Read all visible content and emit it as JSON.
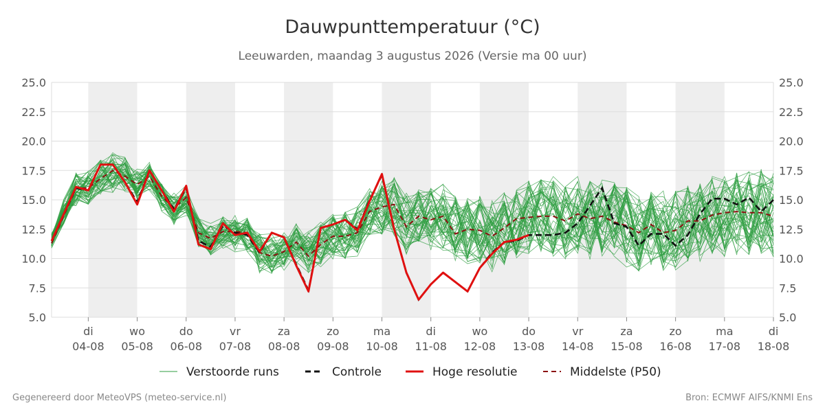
{
  "chart_data": {
    "type": "line",
    "title": "Dauwpunttemperatuur (°C)",
    "subtitle": "Leeuwarden, maandag  3 augustus 2026 (Versie ma 00 uur)",
    "ylim": [
      5.0,
      25.0
    ],
    "yticks": [
      "5.0",
      "7.5",
      "10.0",
      "12.5",
      "15.0",
      "17.5",
      "20.0",
      "22.5",
      "25.0"
    ],
    "xrange_days": [
      3.25,
      18.0
    ],
    "xticks": [
      {
        "day": "di",
        "date": "04-08"
      },
      {
        "day": "wo",
        "date": "05-08"
      },
      {
        "day": "do",
        "date": "06-08"
      },
      {
        "day": "vr",
        "date": "07-08"
      },
      {
        "day": "za",
        "date": "08-08"
      },
      {
        "day": "zo",
        "date": "09-08"
      },
      {
        "day": "ma",
        "date": "10-08"
      },
      {
        "day": "di",
        "date": "11-08"
      },
      {
        "day": "wo",
        "date": "12-08"
      },
      {
        "day": "do",
        "date": "13-08"
      },
      {
        "day": "vr",
        "date": "14-08"
      },
      {
        "day": "za",
        "date": "15-08"
      },
      {
        "day": "zo",
        "date": "16-08"
      },
      {
        "day": "ma",
        "date": "17-08"
      },
      {
        "day": "di",
        "date": "18-08"
      }
    ],
    "grid": true,
    "legend_position": "bottom",
    "colors": {
      "ensemble": "#2e9e40",
      "control": "#111111",
      "hres": "#e01010",
      "median": "#8b1010",
      "weekend_band": "#eeeeee"
    },
    "series": [
      {
        "name": "Controle",
        "style": "dashed",
        "x": [
          3.25,
          3.75,
          4.0,
          4.25,
          4.5,
          4.75,
          5.0,
          5.25,
          5.5,
          5.75,
          6.0,
          6.25,
          6.5,
          6.75,
          7.0,
          7.25,
          7.5,
          7.75,
          8.0,
          8.25,
          8.5,
          8.75,
          9.0,
          9.25,
          9.5,
          9.75,
          10.0,
          10.25,
          10.5,
          10.75,
          11.0,
          11.25,
          11.5,
          11.75,
          12.0,
          12.25,
          12.5,
          12.75,
          13.0,
          13.25,
          13.5,
          13.75,
          14.0,
          14.25,
          14.5,
          14.75,
          15.0,
          15.25,
          15.5,
          15.75,
          16.0,
          16.25,
          16.5,
          16.75,
          17.0,
          17.25,
          17.5,
          17.75,
          18.0
        ],
        "y": [
          11.5,
          16.0,
          15.8,
          18.0,
          18.0,
          16.5,
          14.8,
          17.5,
          15.8,
          14.2,
          16.0,
          11.5,
          11.0,
          12.8,
          12.2,
          12.0,
          10.5,
          12.2,
          11.8,
          9.5,
          7.3,
          12.6,
          12.9,
          13.3,
          12.5,
          15.0,
          17.1,
          12.5,
          8.8,
          6.5,
          7.8,
          8.8,
          8.0,
          7.2,
          9.2,
          10.5,
          11.4,
          11.5,
          12.0,
          12.0,
          12.0,
          12.2,
          13.0,
          14.5,
          16.0,
          13.0,
          12.7,
          11.1,
          12.1,
          12.1,
          11.1,
          12.0,
          13.8,
          15.1,
          15.1,
          14.6,
          15.2,
          14.0,
          15.0
        ]
      },
      {
        "name": "Hoge resolutie",
        "style": "solid",
        "x": [
          3.25,
          3.75,
          4.0,
          4.25,
          4.5,
          4.75,
          5.0,
          5.25,
          5.5,
          5.75,
          6.0,
          6.25,
          6.5,
          6.75,
          7.0,
          7.25,
          7.5,
          7.75,
          8.0,
          8.25,
          8.5,
          8.75,
          9.0,
          9.25,
          9.5,
          9.75,
          10.0,
          10.25,
          10.5,
          10.75,
          11.0,
          11.25,
          11.5,
          11.75,
          12.0,
          12.25,
          12.5,
          12.75,
          13.0
        ],
        "y": [
          11.5,
          16.1,
          15.8,
          18.0,
          18.0,
          16.5,
          14.6,
          17.5,
          15.8,
          14.0,
          16.2,
          11.2,
          10.8,
          13.0,
          12.0,
          12.2,
          10.6,
          12.2,
          11.8,
          9.4,
          7.2,
          12.6,
          12.9,
          13.3,
          12.4,
          14.9,
          17.2,
          12.5,
          8.8,
          6.5,
          7.8,
          8.8,
          8.0,
          7.2,
          9.2,
          10.4,
          11.4,
          11.6,
          12.0
        ]
      },
      {
        "name": "Middelste (P50)",
        "style": "dashed",
        "x": [
          3.25,
          3.75,
          4.0,
          4.25,
          4.5,
          4.75,
          5.0,
          5.25,
          5.5,
          5.75,
          6.0,
          6.25,
          6.5,
          6.75,
          7.0,
          7.25,
          7.5,
          7.75,
          8.0,
          8.25,
          8.5,
          8.75,
          9.0,
          9.25,
          9.5,
          9.75,
          10.0,
          10.25,
          10.5,
          10.75,
          11.0,
          11.25,
          11.5,
          11.75,
          12.0,
          12.25,
          12.5,
          12.75,
          13.0,
          13.25,
          13.5,
          13.75,
          14.0,
          14.25,
          14.5,
          14.75,
          15.0,
          15.25,
          15.5,
          15.75,
          16.0,
          16.25,
          16.5,
          16.75,
          17.0,
          17.25,
          17.5,
          17.75,
          18.0
        ],
        "y": [
          11.3,
          16.0,
          16.0,
          16.8,
          17.5,
          17.0,
          16.3,
          17.0,
          15.3,
          14.3,
          15.2,
          12.2,
          11.7,
          12.3,
          12.3,
          12.2,
          10.5,
          10.2,
          10.6,
          11.4,
          10.2,
          11.2,
          11.9,
          11.9,
          12.2,
          14.0,
          14.4,
          14.6,
          12.7,
          13.6,
          13.3,
          13.6,
          12.1,
          12.5,
          12.4,
          11.9,
          12.6,
          13.4,
          13.5,
          13.6,
          13.6,
          13.2,
          13.8,
          13.4,
          13.6,
          13.1,
          12.8,
          12.2,
          12.9,
          12.2,
          12.4,
          13.2,
          13.2,
          13.7,
          13.9,
          14.0,
          13.9,
          13.9,
          13.6
        ]
      },
      {
        "name": "Verstoorde runs",
        "style": "thin",
        "members": 50,
        "x": [
          3.25,
          3.5,
          3.75,
          4.0,
          4.25,
          4.5,
          4.75,
          5.0,
          5.25,
          5.5,
          5.75,
          6.0,
          6.25,
          6.5,
          6.75,
          7.0,
          7.25,
          7.5,
          7.75,
          8.0,
          8.25,
          8.5,
          8.75,
          9.0,
          9.25,
          9.5,
          9.75,
          10.0,
          10.25,
          10.5,
          10.75,
          11.0,
          11.25,
          11.5,
          11.75,
          12.0,
          12.25,
          12.5,
          12.75,
          13.0,
          13.25,
          13.5,
          13.75,
          14.0,
          14.25,
          14.5,
          14.75,
          15.0,
          15.25,
          15.5,
          15.75,
          16.0,
          16.25,
          16.5,
          16.75,
          17.0,
          17.25,
          17.5,
          17.75,
          18.0
        ],
        "median": [
          11.5,
          14.0,
          16.0,
          16.0,
          17.0,
          17.4,
          17.0,
          16.3,
          17.0,
          15.3,
          14.3,
          15.0,
          12.2,
          11.7,
          12.3,
          12.2,
          12.0,
          10.6,
          10.3,
          10.6,
          11.4,
          10.4,
          11.2,
          11.9,
          12.0,
          12.3,
          13.9,
          14.3,
          14.4,
          13.0,
          13.5,
          13.3,
          13.5,
          12.3,
          12.5,
          12.4,
          12.0,
          12.6,
          13.3,
          13.5,
          13.5,
          13.5,
          13.2,
          13.7,
          13.4,
          13.5,
          13.1,
          12.8,
          12.3,
          12.8,
          12.3,
          12.4,
          13.0,
          13.2,
          13.6,
          13.8,
          13.9,
          13.9,
          13.9,
          13.6
        ],
        "spread": [
          0.5,
          1.0,
          1.3,
          1.5,
          1.4,
          1.6,
          1.5,
          1.3,
          1.0,
          1.1,
          1.2,
          1.2,
          1.3,
          1.3,
          1.3,
          1.4,
          1.5,
          1.6,
          1.6,
          1.6,
          1.7,
          1.7,
          1.7,
          1.8,
          1.9,
          2.0,
          2.1,
          2.2,
          2.3,
          2.4,
          2.5,
          2.6,
          2.7,
          2.8,
          2.8,
          2.9,
          3.0,
          3.0,
          3.1,
          3.1,
          3.1,
          3.2,
          3.2,
          3.2,
          3.2,
          3.3,
          3.3,
          3.3,
          3.3,
          3.3,
          3.4,
          3.4,
          3.4,
          3.4,
          3.4,
          3.5,
          3.5,
          3.5,
          3.5,
          3.5
        ]
      }
    ]
  },
  "legend": {
    "ensemble": "Verstoorde runs",
    "control": "Controle",
    "hres": "Hoge resolutie",
    "median": "Middelste (P50)"
  },
  "footer": {
    "left": "Gegenereerd door MeteoVPS (meteo-service.nl)",
    "right": "Bron: ECMWF AIFS/KNMI Ens"
  }
}
